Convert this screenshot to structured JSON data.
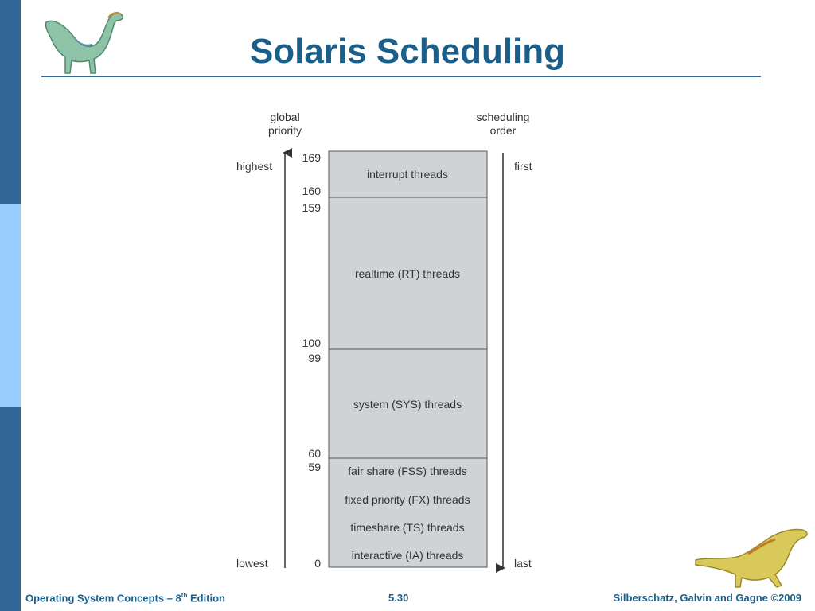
{
  "slide": {
    "title": "Solaris Scheduling",
    "footer": {
      "course_prefix": "Operating System Concepts – 8",
      "course_sup": "th",
      "course_suffix": " Edition",
      "page": "5.30",
      "copyright": "Silberschatz, Galvin and Gagne ©2009"
    }
  },
  "diagram": {
    "left_heading": [
      "global",
      "priority"
    ],
    "right_heading": [
      "scheduling",
      "order"
    ],
    "left_high": "highest",
    "left_low": "lowest",
    "right_high": "first",
    "right_low": "last",
    "classes": [
      {
        "label": "interrupt threads",
        "top": "169",
        "bottom": "160"
      },
      {
        "label": "realtime (RT) threads",
        "top": "159",
        "bottom": "100"
      },
      {
        "label": "system (SYS) threads",
        "top": "99",
        "bottom": "60"
      },
      {
        "label": "fair share (FSS) threads",
        "top": "59",
        "bottom": "0"
      }
    ],
    "bottom_class_extra": [
      "fixed priority (FX) threads",
      "timeshare (TS) threads",
      "interactive (IA) threads"
    ]
  },
  "colors": {
    "title": "#1a5f8a",
    "sidebar_dark": "#336699",
    "sidebar_light": "#99ccff",
    "box_fill": "#d0d3d6",
    "text": "#333333"
  },
  "icons": [
    "dinosaur-top-left",
    "dinosaur-bottom-right"
  ]
}
